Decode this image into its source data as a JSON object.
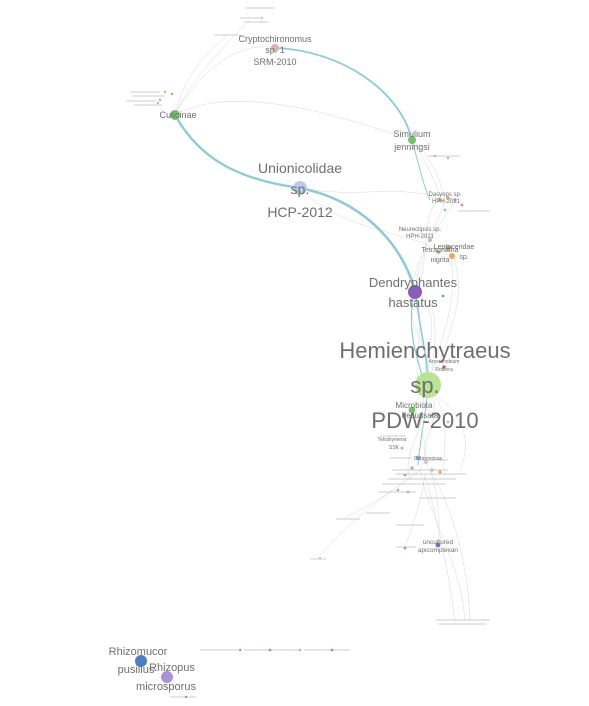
{
  "graph": {
    "labels": {
      "hemienchytraeus_1": "Hemienchytraeus",
      "hemienchytraeus_2": "sp.",
      "hemienchytraeus_3": "PDW-2010",
      "unionicolidae_1": "Unionicolidae",
      "unionicolidae_2": "sp.",
      "unionicolidae_3": "HCP-2012",
      "dendryphantes_1": "Dendryphantes",
      "dendryphantes_2": "hastatus",
      "cryptochironomus_1": "Cryptochironomus",
      "cryptochironomus_2": "sp. 1",
      "cryptochironomus_3": "SRM-2010",
      "simulium_1": "Simulium",
      "simulium_2": "jenningsi",
      "culicinae": "Culicinae",
      "microbiota_1": "Microbiota",
      "microbiota_2": "decussata",
      "rhizomucor_1": "Rhizomucor",
      "rhizomucor_2": "pusillus",
      "rhizopus_1": "Rhizopus",
      "rhizopus_2": "microsporus",
      "uncultured_1": "uncultured",
      "uncultured_2": "apicomplexan",
      "neureclipsis_1": "Neureclipsis sp.",
      "neureclipsis_2": "HPH-2021",
      "tetragnatha_1": "Tetragnatha",
      "tetragnatha_2": "nigrita",
      "leptoceridae_1": "Leptoceridae",
      "leptoceridae_2": "sp.",
      "dasyops_1": "Dasyops sp.",
      "dasyops_2": "HPH-2021",
      "arceuthobium": "Arceuthobium",
      "rotifera": "Rotifera",
      "tetrahymena": "Tetrahymena",
      "ssk": "SSK",
      "ochromonas": "Ochromonas"
    },
    "colors": {
      "edge_highlight": "#8fcad6",
      "edge_light": "#c9c9c9",
      "hemienchytraeus": "#b9e395",
      "dendryphantes": "#8a5cbf",
      "unionicolidae": "#b9cde6",
      "green_node": "#77c16d",
      "cryptochironomus": "#d8b4ad",
      "rhizomucor": "#4a7fc0",
      "rhizopus": "#a993d6",
      "orange_node": "#f0a45c"
    }
  }
}
